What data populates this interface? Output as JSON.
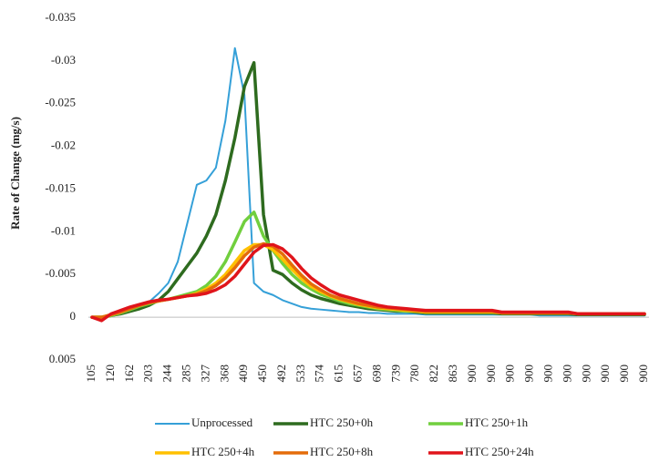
{
  "chart_data": {
    "type": "line",
    "y_axis_label": "Rate of Change (mg/s)",
    "y_reversed": true,
    "ylim": [
      -0.035,
      0.005
    ],
    "yticks": [
      -0.035,
      -0.03,
      -0.025,
      -0.02,
      -0.015,
      -0.01,
      -0.005,
      0,
      0.005
    ],
    "grid": false,
    "legend": "bottom",
    "categories": [
      "105",
      null,
      "120",
      null,
      "162",
      null,
      "203",
      null,
      "244",
      null,
      "285",
      null,
      "327",
      null,
      "368",
      null,
      "409",
      null,
      "450",
      null,
      "492",
      null,
      "533",
      null,
      "574",
      null,
      "615",
      null,
      "657",
      null,
      "698",
      null,
      "739",
      null,
      "780",
      null,
      "822",
      null,
      "863",
      null,
      "900",
      null,
      "900",
      null,
      "900",
      null,
      "900",
      null,
      "900",
      null,
      "900",
      null,
      "900",
      null,
      "900",
      null,
      "900",
      null,
      "900"
    ],
    "series": [
      {
        "name": "Unprocessed",
        "color": "#35a0d8",
        "width": 2,
        "values": [
          0,
          0,
          -0.0002,
          -0.0004,
          -0.0008,
          -0.0012,
          -0.0018,
          -0.0028,
          -0.004,
          -0.0065,
          -0.011,
          -0.0155,
          -0.016,
          -0.0175,
          -0.023,
          -0.0315,
          -0.026,
          -0.004,
          -0.003,
          -0.0026,
          -0.002,
          -0.0016,
          -0.0012,
          -0.001,
          -0.0009,
          -0.0008,
          -0.0007,
          -0.0006,
          -0.0006,
          -0.0005,
          -0.0005,
          -0.0004,
          -0.0004,
          -0.0004,
          -0.0004,
          -0.0003,
          -0.0003,
          -0.0003,
          -0.0003,
          -0.0003,
          -0.0003,
          -0.0003,
          -0.0003,
          -0.0003,
          -0.0003,
          -0.0003,
          -0.0003,
          -0.0002,
          -0.0002,
          -0.0002,
          -0.0002,
          -0.0002,
          -0.0002,
          -0.0002,
          -0.0002,
          -0.0002,
          -0.0002,
          -0.0002,
          -0.0002
        ]
      },
      {
        "name": "HTC 250+0h",
        "color": "#2e6b1f",
        "width": 3.5,
        "values": [
          0,
          0,
          -0.0002,
          -0.0004,
          -0.0007,
          -0.001,
          -0.0014,
          -0.002,
          -0.003,
          -0.0045,
          -0.006,
          -0.0075,
          -0.0095,
          -0.012,
          -0.016,
          -0.021,
          -0.027,
          -0.0298,
          -0.012,
          -0.0055,
          -0.005,
          -0.004,
          -0.0032,
          -0.0026,
          -0.0022,
          -0.0019,
          -0.0016,
          -0.0014,
          -0.0012,
          -0.001,
          -0.0009,
          -0.0008,
          -0.0007,
          -0.0007,
          -0.0006,
          -0.0005,
          -0.0005,
          -0.0005,
          -0.0005,
          -0.0005,
          -0.0005,
          -0.0005,
          -0.0005,
          -0.0004,
          -0.0004,
          -0.0004,
          -0.0004,
          -0.0004,
          -0.0004,
          -0.0004,
          -0.0004,
          -0.0003,
          -0.0003,
          -0.0003,
          -0.0003,
          -0.0003,
          -0.0003,
          -0.0003,
          -0.0003
        ]
      },
      {
        "name": "HTC 250+1h",
        "color": "#71cf3e",
        "width": 3.5,
        "values": [
          0,
          0,
          -0.0002,
          -0.0005,
          -0.0009,
          -0.0013,
          -0.0016,
          -0.0019,
          -0.0021,
          -0.0024,
          -0.0027,
          -0.003,
          -0.0037,
          -0.0048,
          -0.0065,
          -0.0088,
          -0.0112,
          -0.0123,
          -0.0095,
          -0.0078,
          -0.0063,
          -0.005,
          -0.004,
          -0.0033,
          -0.0027,
          -0.0023,
          -0.0019,
          -0.0016,
          -0.0014,
          -0.0012,
          -0.001,
          -0.0009,
          -0.0008,
          -0.0007,
          -0.0007,
          -0.0006,
          -0.0006,
          -0.0006,
          -0.0006,
          -0.0006,
          -0.0006,
          -0.0006,
          -0.0006,
          -0.0005,
          -0.0005,
          -0.0005,
          -0.0005,
          -0.0005,
          -0.0005,
          -0.0005,
          -0.0005,
          -0.0004,
          -0.0004,
          -0.0004,
          -0.0004,
          -0.0004,
          -0.0004,
          -0.0004,
          -0.0004
        ]
      },
      {
        "name": "HTC 250+4h",
        "color": "#ffc000",
        "width": 3.5,
        "values": [
          0,
          0,
          -0.0003,
          -0.0006,
          -0.001,
          -0.0014,
          -0.0017,
          -0.0019,
          -0.0021,
          -0.0023,
          -0.0025,
          -0.0028,
          -0.0033,
          -0.004,
          -0.005,
          -0.0064,
          -0.0078,
          -0.0085,
          -0.0085,
          -0.0079,
          -0.0068,
          -0.0056,
          -0.0045,
          -0.0036,
          -0.003,
          -0.0025,
          -0.0021,
          -0.0018,
          -0.0015,
          -0.0013,
          -0.0011,
          -0.001,
          -0.0009,
          -0.0008,
          -0.0007,
          -0.0006,
          -0.0006,
          -0.0006,
          -0.0006,
          -0.0006,
          -0.0006,
          -0.0006,
          -0.0006,
          -0.0005,
          -0.0005,
          -0.0005,
          -0.0005,
          -0.0005,
          -0.0005,
          -0.0005,
          -0.0005,
          -0.0004,
          -0.0004,
          -0.0004,
          -0.0004,
          -0.0004,
          -0.0004,
          -0.0004,
          -0.0004
        ]
      },
      {
        "name": "HTC 250+8h",
        "color": "#e46c0a",
        "width": 3.5,
        "values": [
          0,
          0,
          -0.0003,
          -0.0006,
          -0.001,
          -0.0014,
          -0.0017,
          -0.0019,
          -0.0021,
          -0.0023,
          -0.0025,
          -0.0027,
          -0.0031,
          -0.0037,
          -0.0046,
          -0.0058,
          -0.0072,
          -0.0082,
          -0.0086,
          -0.0083,
          -0.0074,
          -0.0061,
          -0.0049,
          -0.0039,
          -0.0032,
          -0.0026,
          -0.0022,
          -0.0019,
          -0.0016,
          -0.0014,
          -0.0012,
          -0.0011,
          -0.001,
          -0.0009,
          -0.0008,
          -0.0007,
          -0.0007,
          -0.0007,
          -0.0007,
          -0.0007,
          -0.0007,
          -0.0007,
          -0.0007,
          -0.0005,
          -0.0005,
          -0.0005,
          -0.0005,
          -0.0005,
          -0.0005,
          -0.0005,
          -0.0005,
          -0.0004,
          -0.0004,
          -0.0004,
          -0.0004,
          -0.0004,
          -0.0004,
          -0.0004,
          -0.0004
        ]
      },
      {
        "name": "HTC 250+24h",
        "color": "#e0141b",
        "width": 3.5,
        "values": [
          0,
          0.0004,
          -0.0004,
          -0.0008,
          -0.0012,
          -0.0015,
          -0.0018,
          -0.002,
          -0.0021,
          -0.0023,
          -0.0025,
          -0.0026,
          -0.0028,
          -0.0032,
          -0.0038,
          -0.0048,
          -0.0062,
          -0.0076,
          -0.0084,
          -0.0085,
          -0.008,
          -0.007,
          -0.0057,
          -0.0046,
          -0.0038,
          -0.0031,
          -0.0026,
          -0.0023,
          -0.002,
          -0.0017,
          -0.0014,
          -0.0012,
          -0.0011,
          -0.001,
          -0.0009,
          -0.0008,
          -0.0008,
          -0.0008,
          -0.0008,
          -0.0008,
          -0.0008,
          -0.0008,
          -0.0008,
          -0.0006,
          -0.0006,
          -0.0006,
          -0.0006,
          -0.0006,
          -0.0006,
          -0.0006,
          -0.0006,
          -0.0004,
          -0.0004,
          -0.0004,
          -0.0004,
          -0.0004,
          -0.0004,
          -0.0004,
          -0.0004
        ]
      }
    ]
  }
}
